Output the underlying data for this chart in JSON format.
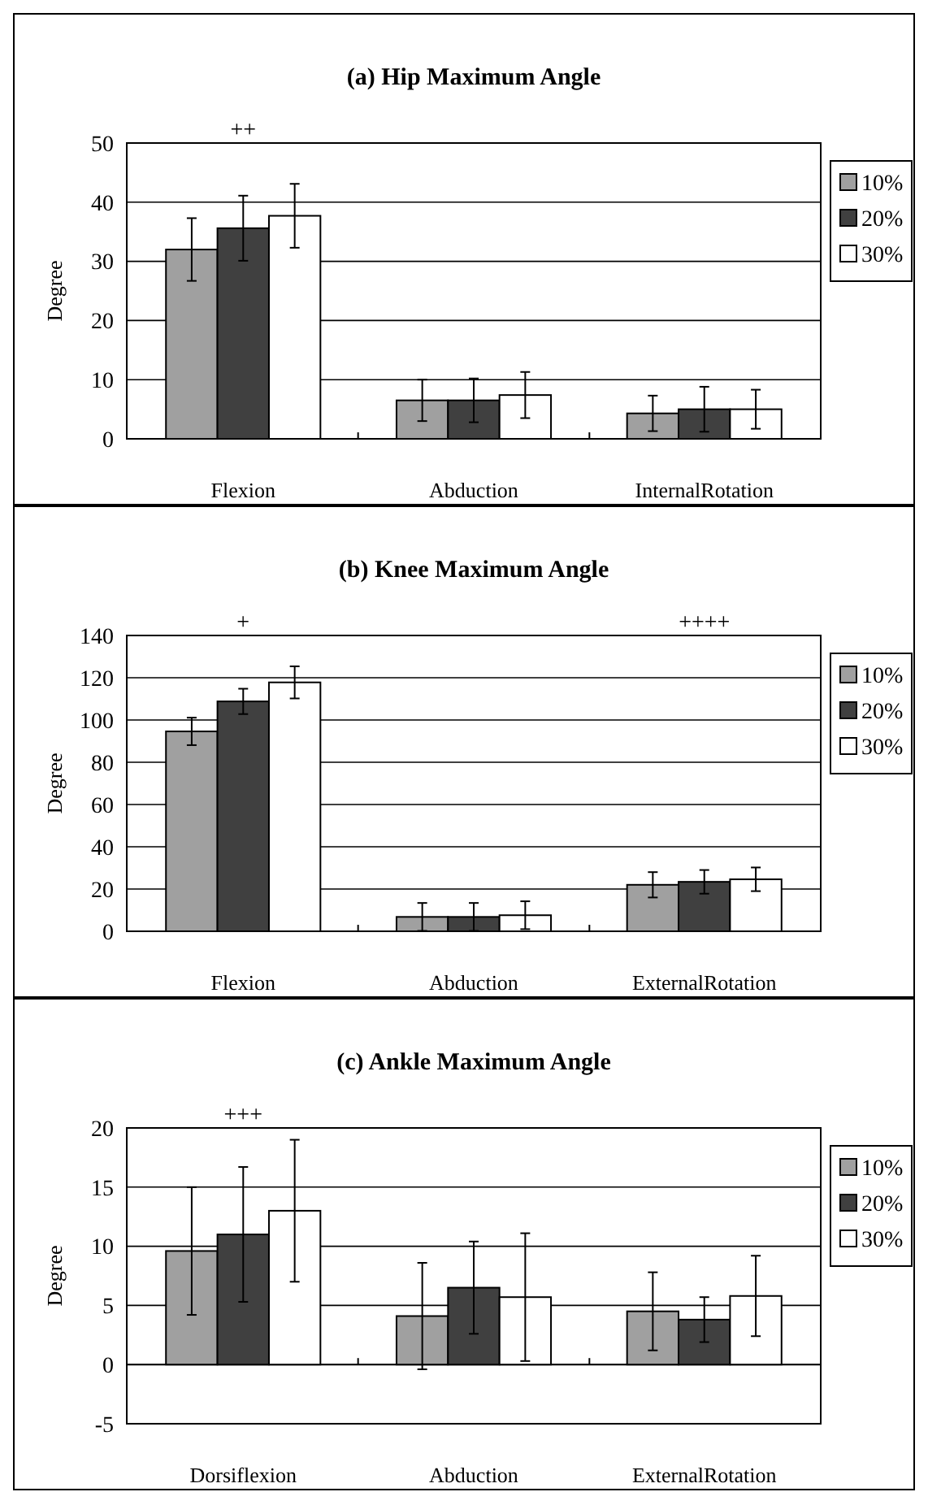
{
  "chart_data": [
    {
      "type": "bar",
      "title": "(a) Hip Maximum Angle",
      "ylabel": "Degree",
      "categories": [
        "Flexion",
        "Abduction",
        "InternalRotation"
      ],
      "ylim": [
        0,
        50
      ],
      "yticks": [
        0,
        10,
        20,
        30,
        40,
        50
      ],
      "grid": "y",
      "legend": "right",
      "series": [
        {
          "name": "10%",
          "color": "#a0a0a0",
          "values": [
            32,
            6.5,
            4.3
          ],
          "errors": [
            5.3,
            3.5,
            3
          ]
        },
        {
          "name": "20%",
          "color": "#404040",
          "values": [
            35.6,
            6.5,
            5
          ],
          "errors": [
            5.5,
            3.7,
            3.8
          ]
        },
        {
          "name": "30%",
          "color": "#ffffff",
          "values": [
            37.7,
            7.4,
            5
          ],
          "errors": [
            5.4,
            3.9,
            3.3
          ]
        }
      ],
      "annotations": [
        "++"
      ]
    },
    {
      "type": "bar",
      "title": "(b) Knee Maximum Angle",
      "ylabel": "Degree",
      "categories": [
        "Flexion",
        "Abduction",
        "ExternalRotation"
      ],
      "ylim": [
        0,
        140
      ],
      "yticks": [
        0,
        20,
        40,
        60,
        80,
        100,
        120,
        140
      ],
      "grid": "y",
      "legend": "right",
      "series": [
        {
          "name": "10%",
          "color": "#a0a0a0",
          "values": [
            94.6,
            6.8,
            22
          ],
          "errors": [
            6.5,
            6.6,
            6
          ]
        },
        {
          "name": "20%",
          "color": "#404040",
          "values": [
            108.8,
            6.8,
            23.4
          ],
          "errors": [
            6,
            6.6,
            5.6
          ]
        },
        {
          "name": "30%",
          "color": "#ffffff",
          "values": [
            117.8,
            7.6,
            24.6
          ],
          "errors": [
            7.6,
            6.6,
            5.6
          ]
        }
      ],
      "annotations": [
        "+",
        "++++"
      ]
    },
    {
      "type": "bar",
      "title": "(c) Ankle Maximum Angle",
      "ylabel": "Degree",
      "categories": [
        "Dorsiflexion",
        "Abduction",
        "ExternalRotation"
      ],
      "ylim": [
        -5,
        20
      ],
      "yticks": [
        -5,
        0,
        5,
        10,
        15,
        20
      ],
      "grid": "y",
      "legend": "right",
      "series": [
        {
          "name": "10%",
          "color": "#a0a0a0",
          "values": [
            9.6,
            4.1,
            4.5
          ],
          "errors": [
            5.4,
            4.5,
            3.3
          ]
        },
        {
          "name": "20%",
          "color": "#404040",
          "values": [
            11,
            6.5,
            3.8
          ],
          "errors": [
            5.7,
            3.9,
            1.9
          ]
        },
        {
          "name": "30%",
          "color": "#ffffff",
          "values": [
            13,
            5.7,
            5.8
          ],
          "errors": [
            6,
            5.4,
            3.4
          ]
        }
      ],
      "annotations": [
        "+++"
      ]
    }
  ]
}
